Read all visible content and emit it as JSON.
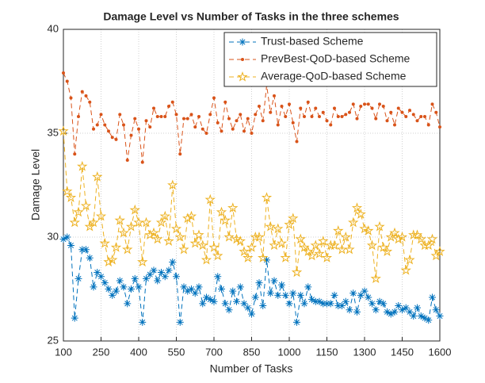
{
  "chart_data": {
    "type": "line",
    "title": "Damage Level vs Number of Tasks in the three schemes",
    "xlabel": "Number of Tasks",
    "ylabel": "Damage Level",
    "xlim": [
      100,
      1600
    ],
    "xticks": [
      100,
      250,
      400,
      550,
      700,
      850,
      1000,
      1150,
      1300,
      1450,
      1600
    ],
    "ylim": [
      25,
      40
    ],
    "yticks": [
      25,
      30,
      35,
      40
    ],
    "grid": true,
    "legend": "upper right",
    "x": [
      100,
      115,
      130,
      145,
      160,
      175,
      190,
      205,
      220,
      235,
      250,
      265,
      280,
      295,
      310,
      325,
      340,
      355,
      370,
      385,
      400,
      415,
      430,
      445,
      460,
      475,
      490,
      505,
      520,
      535,
      550,
      565,
      580,
      595,
      610,
      625,
      640,
      655,
      670,
      685,
      700,
      715,
      730,
      745,
      760,
      775,
      790,
      805,
      820,
      835,
      850,
      865,
      880,
      895,
      910,
      925,
      940,
      955,
      970,
      985,
      1000,
      1015,
      1030,
      1045,
      1060,
      1075,
      1090,
      1105,
      1120,
      1135,
      1150,
      1165,
      1180,
      1195,
      1210,
      1225,
      1240,
      1255,
      1270,
      1285,
      1300,
      1315,
      1330,
      1345,
      1360,
      1375,
      1390,
      1405,
      1420,
      1435,
      1450,
      1465,
      1480,
      1495,
      1510,
      1525,
      1540,
      1555,
      1570,
      1585,
      1600
    ],
    "series": [
      {
        "name": "Trust-based Scheme",
        "color": "#0072bd",
        "marker": "asterisk",
        "values": [
          29.9,
          30.0,
          29.6,
          26.1,
          28.0,
          29.4,
          29.4,
          29.0,
          27.6,
          28.3,
          28.1,
          27.8,
          27.5,
          27.2,
          27.4,
          27.9,
          27.6,
          26.8,
          27.5,
          28.0,
          27.6,
          25.9,
          28.0,
          28.2,
          28.4,
          27.9,
          28.3,
          28.1,
          28.4,
          28.8,
          28.1,
          25.9,
          27.6,
          27.4,
          27.5,
          27.3,
          27.6,
          26.8,
          27.1,
          27.0,
          26.9,
          28.1,
          27.5,
          26.8,
          26.5,
          27.4,
          26.9,
          27.6,
          26.8,
          26.6,
          26.3,
          27.1,
          27.8,
          26.7,
          28.9,
          27.3,
          27.9,
          27.2,
          27.7,
          27.2,
          26.8,
          27.3,
          25.9,
          27.2,
          26.8,
          27.6,
          27.0,
          26.9,
          26.9,
          26.8,
          26.8,
          26.8,
          27.2,
          26.7,
          26.7,
          26.9,
          26.5,
          27.3,
          26.4,
          27.2,
          27.4,
          27.1,
          26.8,
          26.5,
          26.9,
          26.8,
          26.4,
          26.3,
          26.4,
          26.7,
          26.5,
          26.6,
          26.4,
          26.2,
          26.6,
          26.2,
          26.1,
          26.0,
          27.1,
          26.5,
          26.2
        ]
      },
      {
        "name": "PrevBest-QoD-based Scheme",
        "color": "#d95319",
        "marker": "dot",
        "values": [
          37.9,
          37.5,
          36.7,
          34.0,
          35.8,
          37.0,
          36.8,
          36.5,
          35.2,
          35.4,
          35.9,
          35.4,
          35.1,
          34.8,
          34.7,
          35.9,
          35.4,
          33.7,
          34.9,
          35.7,
          35.2,
          33.6,
          35.6,
          35.3,
          36.2,
          35.8,
          35.8,
          35.8,
          36.3,
          36.5,
          35.9,
          34.0,
          35.7,
          35.7,
          35.9,
          35.3,
          35.8,
          35.2,
          35.0,
          35.9,
          36.7,
          35.5,
          35.1,
          36.5,
          35.7,
          35.2,
          35.6,
          35.9,
          35.1,
          35.7,
          35.0,
          35.9,
          36.3,
          35.6,
          37.3,
          36.0,
          36.8,
          35.4,
          36.3,
          35.8,
          36.4,
          35.5,
          34.6,
          36.2,
          35.8,
          36.5,
          35.8,
          36.2,
          35.8,
          36.0,
          35.6,
          35.4,
          36.2,
          35.8,
          35.8,
          35.9,
          36.0,
          36.4,
          35.7,
          36.3,
          36.4,
          36.4,
          36.2,
          35.7,
          36.4,
          36.3,
          35.6,
          36.0,
          35.4,
          36.2,
          36.0,
          35.8,
          36.1,
          35.9,
          35.6,
          35.8,
          35.8,
          35.4,
          36.4,
          36.0,
          35.3
        ]
      },
      {
        "name": "Average-QoD-based Scheme",
        "color": "#edb120",
        "marker": "pentagram",
        "values": [
          35.1,
          32.2,
          31.9,
          30.7,
          31.2,
          33.4,
          31.5,
          30.5,
          30.7,
          32.9,
          31.0,
          29.7,
          28.8,
          28.9,
          29.5,
          30.8,
          30.2,
          29.4,
          30.5,
          31.3,
          30.7,
          28.8,
          30.7,
          30.1,
          30.2,
          29.9,
          30.7,
          31.0,
          29.8,
          32.5,
          30.4,
          30.0,
          29.4,
          30.9,
          31.0,
          29.7,
          30.1,
          29.6,
          28.9,
          31.8,
          29.5,
          29.1,
          31.2,
          30.8,
          30.0,
          31.4,
          29.9,
          29.8,
          29.3,
          29.0,
          29.5,
          30.0,
          30.0,
          29.0,
          31.9,
          30.5,
          29.6,
          30.4,
          29.7,
          29.0,
          30.6,
          30.9,
          28.3,
          29.9,
          29.5,
          29.3,
          29.1,
          29.6,
          29.2,
          29.8,
          29.0,
          29.6,
          29.6,
          30.3,
          29.4,
          30.0,
          29.4,
          30.7,
          31.4,
          31.1,
          30.4,
          30.3,
          29.6,
          28.0,
          30.5,
          29.5,
          29.3,
          30.0,
          30.2,
          29.9,
          30.0,
          28.4,
          28.9,
          30.1,
          30.1,
          29.9,
          29.6,
          29.6,
          29.9,
          29.1,
          29.3
        ]
      }
    ]
  }
}
